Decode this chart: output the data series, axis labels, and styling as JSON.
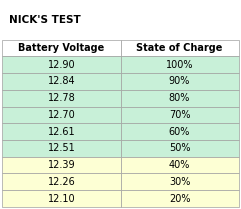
{
  "title": "NICK'S TEST",
  "col_headers": [
    "Battery Voltage",
    "State of Charge"
  ],
  "rows": [
    [
      "12.90",
      "100%"
    ],
    [
      "12.84",
      "90%"
    ],
    [
      "12.78",
      "80%"
    ],
    [
      "12.70",
      "70%"
    ],
    [
      "12.61",
      "60%"
    ],
    [
      "12.51",
      "50%"
    ],
    [
      "12.39",
      "40%"
    ],
    [
      "12.26",
      "30%"
    ],
    [
      "12.10",
      "20%"
    ]
  ],
  "row_color_green": "#c8f0d8",
  "row_color_yellow": "#fdffd4",
  "header_color": "#ffffff",
  "title_fontsize": 7.5,
  "header_fontsize": 7,
  "cell_fontsize": 7,
  "background_color": "#ffffff",
  "border_color": "#a0a0a0",
  "text_color": "#000000",
  "n_green_rows": 6,
  "n_yellow_rows": 3
}
